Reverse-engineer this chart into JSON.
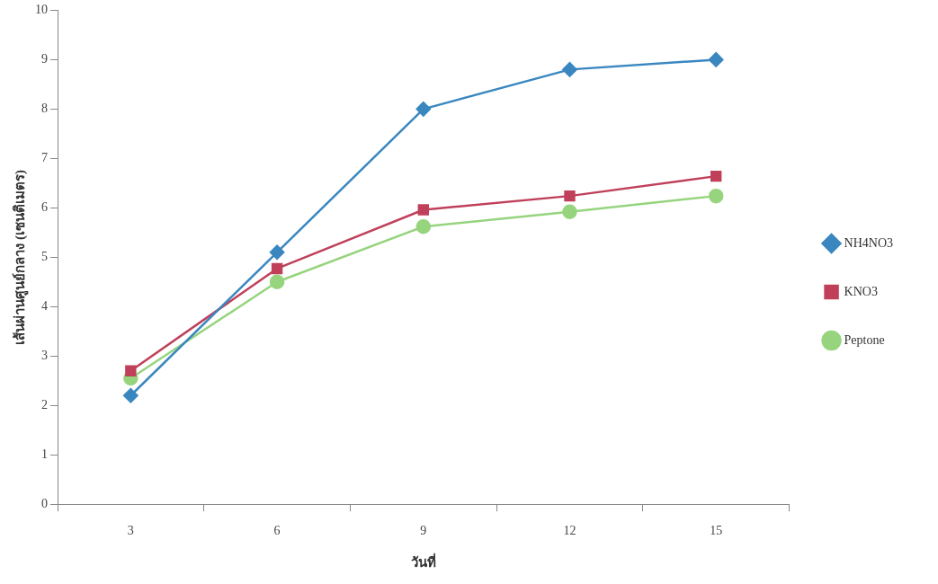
{
  "chart_data": {
    "type": "line",
    "xlabel": "วันที่",
    "ylabel": "เส้นผ่านศูนย์กลาง (เซนติเมตร)",
    "categories": [
      "3",
      "6",
      "9",
      "12",
      "15"
    ],
    "series": [
      {
        "name": "NH4NO3",
        "color": "#3a87c0",
        "marker": "diamond",
        "values": [
          2.2,
          5.1,
          8.0,
          8.8,
          9.0
        ]
      },
      {
        "name": "KNO3",
        "color": "#c0405a",
        "marker": "square",
        "values": [
          2.7,
          4.77,
          5.96,
          6.24,
          6.64
        ]
      },
      {
        "name": "Peptone",
        "color": "#96d47e",
        "marker": "circle",
        "values": [
          2.55,
          4.5,
          5.62,
          5.92,
          6.24
        ]
      }
    ],
    "ylim": [
      0,
      10
    ],
    "yticks": [
      0,
      1,
      2,
      3,
      4,
      5,
      6,
      7,
      8,
      9,
      10
    ],
    "grid": false,
    "legend": "right",
    "line_style": "solid"
  }
}
